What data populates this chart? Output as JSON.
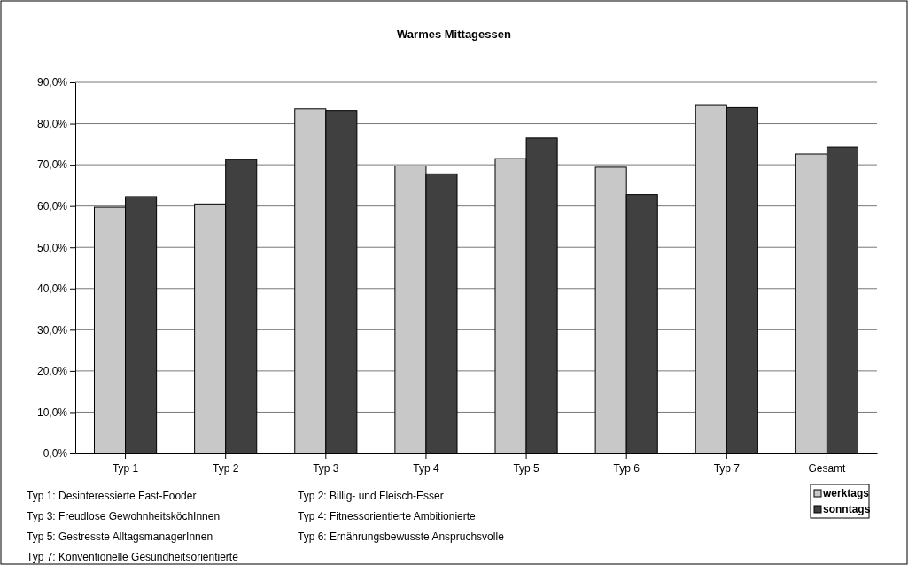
{
  "chart_data": {
    "type": "bar",
    "title": "Warmes Mittagessen",
    "categories": [
      "Typ 1",
      "Typ 2",
      "Typ 3",
      "Typ 4",
      "Typ 5",
      "Typ 6",
      "Typ 7",
      "Gesamt"
    ],
    "series": [
      {
        "name": "werktags",
        "color": "#c8c8c8",
        "values": [
          59.7,
          60.5,
          83.6,
          69.7,
          71.5,
          69.4,
          84.4,
          72.6
        ]
      },
      {
        "name": "sonntags",
        "color": "#404040",
        "values": [
          62.3,
          71.3,
          83.2,
          67.8,
          76.5,
          62.8,
          83.9,
          74.3
        ]
      }
    ],
    "ylim": [
      0,
      90
    ],
    "yticks": [
      {
        "value": 0,
        "label": "0,0%"
      },
      {
        "value": 10,
        "label": "10,0%"
      },
      {
        "value": 20,
        "label": "20,0%"
      },
      {
        "value": 30,
        "label": "30,0%"
      },
      {
        "value": 40,
        "label": "40,0%"
      },
      {
        "value": 50,
        "label": "50,0%"
      },
      {
        "value": 60,
        "label": "60,0%"
      },
      {
        "value": 70,
        "label": "70,0%"
      },
      {
        "value": 80,
        "label": "80,0%"
      },
      {
        "value": 90,
        "label": "90,0%"
      }
    ],
    "grid": "y",
    "legend": "bottom right",
    "annotations": [
      "Typ 1: Desinteressierte Fast-Fooder",
      "Typ 2: Billig- und Fleisch-Esser",
      "Typ 3: Freudlose GewohnheitsköchInnen",
      "Typ 4: Fitnessorientierte Ambitionierte",
      "Typ 5: Gestresste AlltagsmanagerInnen",
      "Typ 6: Ernährungsbewusste Anspruchsvolle",
      "Typ 7: Konventionelle Gesundheitsorientierte"
    ]
  }
}
